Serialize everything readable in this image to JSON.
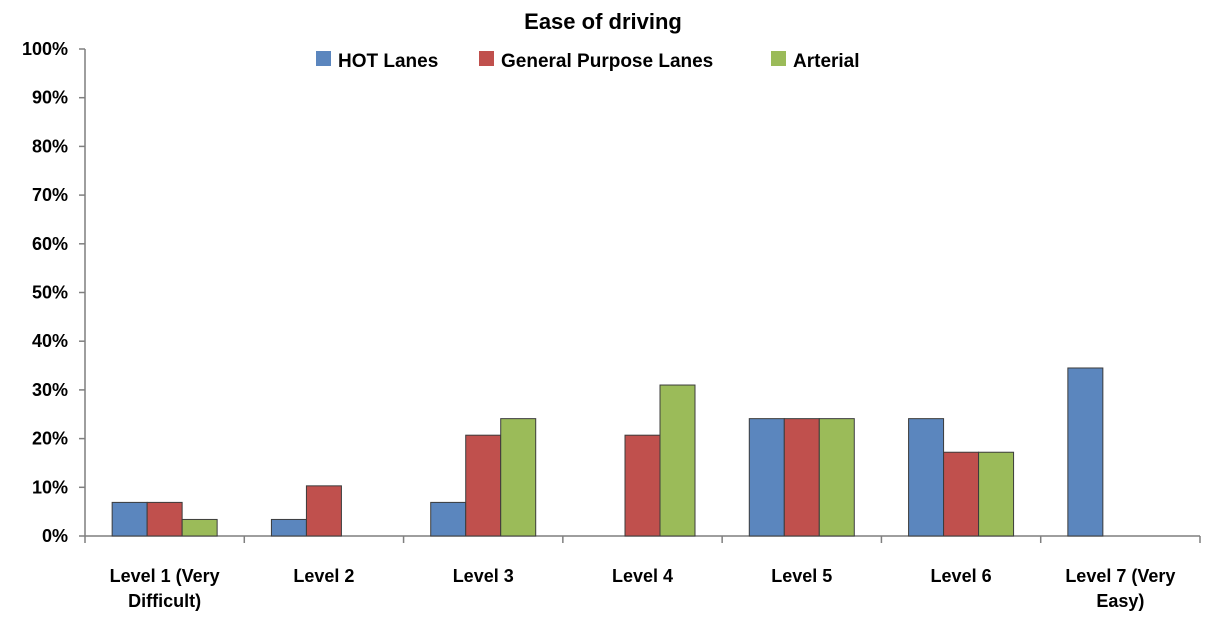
{
  "chart_data": {
    "type": "bar",
    "title": "Ease of driving",
    "categories": [
      [
        "Level 1 (Very",
        "Difficult)"
      ],
      [
        "Level 2"
      ],
      [
        "Level 3"
      ],
      [
        "Level 4"
      ],
      [
        "Level 5"
      ],
      [
        "Level 6"
      ],
      [
        "Level 7 (Very",
        "Easy)"
      ]
    ],
    "series": [
      {
        "name": "HOT Lanes",
        "color": "#5b86be",
        "values": [
          6.9,
          3.4,
          6.9,
          0,
          24.1,
          24.1,
          34.5
        ]
      },
      {
        "name": "General Purpose Lanes",
        "color": "#c0504d",
        "values": [
          6.9,
          10.3,
          20.7,
          20.7,
          24.1,
          17.2,
          0
        ]
      },
      {
        "name": "Arterial",
        "color": "#9bbb59",
        "values": [
          3.4,
          0,
          24.1,
          31.0,
          24.1,
          17.2,
          0
        ]
      }
    ],
    "ylim": [
      0,
      100
    ],
    "yticks": [
      0,
      10,
      20,
      30,
      40,
      50,
      60,
      70,
      80,
      90,
      100
    ],
    "ytick_format": "percent",
    "xlabel": "",
    "ylabel": "",
    "grid": false,
    "legend_position": "top"
  }
}
